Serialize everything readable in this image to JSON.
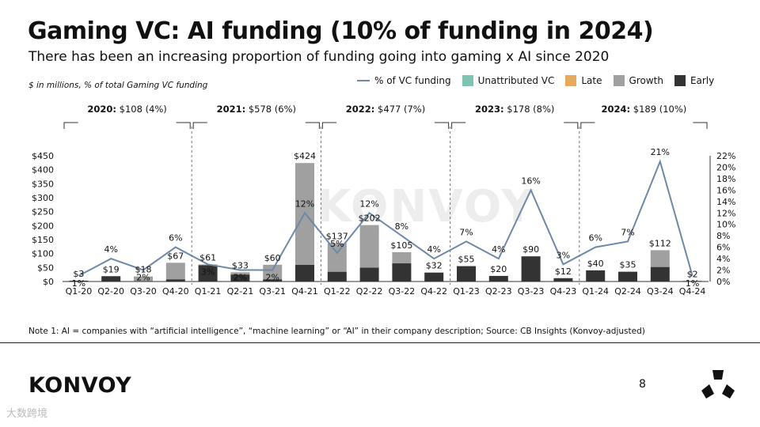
{
  "header": {
    "title": "Gaming VC: AI funding (10% of funding in 2024)",
    "subtitle": "There has been an increasing proportion of funding going into gaming x AI since 2020",
    "units_note": "$ in millions, % of total Gaming VC funding"
  },
  "legend": [
    {
      "label": "% of VC funding",
      "kind": "line",
      "color": "#6e88a6"
    },
    {
      "label": "Unattributed VC",
      "kind": "box",
      "color": "#7fc4b2"
    },
    {
      "label": "Late",
      "kind": "box",
      "color": "#e5aa5d"
    },
    {
      "label": "Growth",
      "kind": "box",
      "color": "#a0a0a0"
    },
    {
      "label": "Early",
      "kind": "box",
      "color": "#333333"
    }
  ],
  "years": [
    {
      "year": "2020:",
      "rest": " $108 (4%)"
    },
    {
      "year": "2021:",
      "rest": " $578 (6%)"
    },
    {
      "year": "2022:",
      "rest": " $477 (7%)"
    },
    {
      "year": "2023:",
      "rest": " $178 (8%)"
    },
    {
      "year": "2024:",
      "rest": " $189 (10%)"
    }
  ],
  "chart_data": {
    "type": "bar",
    "categories": [
      "Q1-20",
      "Q2-20",
      "Q3-20",
      "Q4-20",
      "Q1-21",
      "Q2-21",
      "Q3-21",
      "Q4-21",
      "Q1-22",
      "Q2-22",
      "Q3-22",
      "Q4-22",
      "Q1-23",
      "Q2-23",
      "Q3-23",
      "Q4-23",
      "Q1-24",
      "Q2-24",
      "Q3-24",
      "Q4-24"
    ],
    "totals_labels": [
      "$3",
      "$19",
      "$18",
      "$67",
      "$61",
      "$33",
      "$60",
      "$424",
      "$137",
      "$202",
      "$105",
      "$32",
      "$55",
      "$20",
      "$90",
      "$12",
      "$40",
      "$35",
      "$112",
      "$2"
    ],
    "series": [
      {
        "name": "Early",
        "color": "#333333",
        "values": [
          3,
          19,
          2,
          8,
          58,
          25,
          8,
          60,
          35,
          50,
          65,
          32,
          55,
          20,
          90,
          12,
          40,
          35,
          52,
          2
        ]
      },
      {
        "name": "Growth",
        "color": "#a0a0a0",
        "values": [
          0,
          0,
          16,
          59,
          3,
          8,
          52,
          364,
          102,
          152,
          40,
          0,
          0,
          0,
          0,
          0,
          0,
          0,
          60,
          0
        ]
      }
    ],
    "pct_series": {
      "name": "% of VC funding",
      "values": [
        1,
        4,
        2,
        6,
        3,
        2,
        2,
        12,
        5,
        12,
        8,
        4,
        7,
        4,
        16,
        3,
        6,
        7,
        21,
        1
      ],
      "labels": [
        "1%",
        "4%",
        "2%",
        "6%",
        "3%",
        "2%",
        "2%",
        "12%",
        "5%",
        "12%",
        "8%",
        "4%",
        "7%",
        "4%",
        "16%",
        "3%",
        "6%",
        "7%",
        "21%",
        "1%"
      ]
    },
    "y_left": {
      "min": 0,
      "max": 450,
      "ticks": [
        "$0",
        "$50",
        "$100",
        "$150",
        "$200",
        "$250",
        "$300",
        "$350",
        "$400",
        "$450"
      ]
    },
    "y_right": {
      "min": 0,
      "max": 22,
      "ticks": [
        "0%",
        "2%",
        "4%",
        "6%",
        "8%",
        "10%",
        "12%",
        "14%",
        "16%",
        "18%",
        "20%",
        "22%"
      ]
    }
  },
  "watermark_text": "KONVOY",
  "footer": {
    "note": "Note 1: AI = companies with “artificial intelligence”, “machine learning” or “AI” in their company description; Source: CB Insights (Konvoy-adjusted)",
    "brand": "KONVOY",
    "page": "8",
    "corner_mark": "大数跨境"
  }
}
